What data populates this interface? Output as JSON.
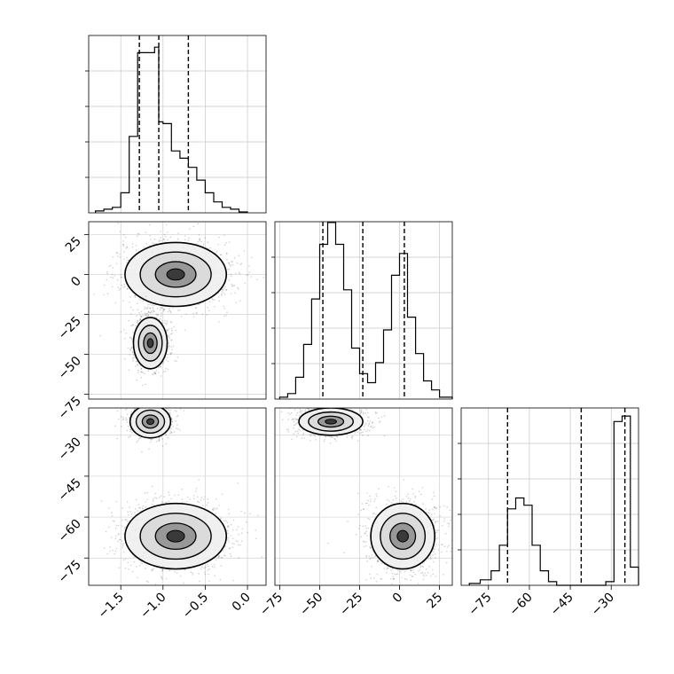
{
  "chart_data": {
    "type": "corner",
    "parameters": [
      {
        "id": "p1",
        "range": [
          -1.88,
          0.22
        ],
        "ticks": [
          {
            "v": -1.5,
            "label": "−1.5"
          },
          {
            "v": -1.0,
            "label": "−1.0"
          },
          {
            "v": -0.5,
            "label": "−0.5"
          },
          {
            "v": 0.0,
            "label": "0.0"
          }
        ]
      },
      {
        "id": "p2",
        "range": [
          -78,
          33
        ],
        "ticks": [
          {
            "v": -75,
            "label": "−75"
          },
          {
            "v": -50,
            "label": "−50"
          },
          {
            "v": -25,
            "label": "−25"
          },
          {
            "v": 0,
            "label": "0"
          },
          {
            "v": 25,
            "label": "25"
          }
        ]
      },
      {
        "id": "p3",
        "range": [
          -85,
          -20
        ],
        "ticks": [
          {
            "v": -75,
            "label": "−75"
          },
          {
            "v": -60,
            "label": "−60"
          },
          {
            "v": -45,
            "label": "−45"
          },
          {
            "v": -30,
            "label": "−30"
          }
        ]
      }
    ],
    "histograms": [
      {
        "param": "p1",
        "bins": [
          [
            -1.8,
            -1.7,
            0.01
          ],
          [
            -1.7,
            -1.6,
            0.02
          ],
          [
            -1.6,
            -1.5,
            0.03
          ],
          [
            -1.5,
            -1.4,
            0.11
          ],
          [
            -1.4,
            -1.3,
            0.42
          ],
          [
            -1.3,
            -1.2,
            0.88
          ],
          [
            -1.2,
            -1.1,
            0.88
          ],
          [
            -1.1,
            -1.05,
            0.91
          ],
          [
            -1.05,
            -1.0,
            0.5
          ],
          [
            -1.0,
            -0.9,
            0.49
          ],
          [
            -0.9,
            -0.8,
            0.34
          ],
          [
            -0.8,
            -0.7,
            0.3
          ],
          [
            -0.7,
            -0.6,
            0.25
          ],
          [
            -0.6,
            -0.5,
            0.18
          ],
          [
            -0.5,
            -0.4,
            0.11
          ],
          [
            -0.4,
            -0.3,
            0.06
          ],
          [
            -0.3,
            -0.2,
            0.03
          ],
          [
            -0.2,
            -0.1,
            0.02
          ],
          [
            -0.1,
            0.0,
            0.005
          ]
        ],
        "quantiles": [
          -1.28,
          -1.05,
          -0.7
        ]
      },
      {
        "param": "p2",
        "bins": [
          [
            -75,
            -70,
            0.01
          ],
          [
            -70,
            -65,
            0.03
          ],
          [
            -65,
            -60,
            0.12
          ],
          [
            -60,
            -55,
            0.3
          ],
          [
            -55,
            -50,
            0.55
          ],
          [
            -50,
            -45,
            0.85
          ],
          [
            -45,
            -40,
            0.97
          ],
          [
            -40,
            -35,
            0.85
          ],
          [
            -35,
            -30,
            0.6
          ],
          [
            -30,
            -25,
            0.28
          ],
          [
            -25,
            -20,
            0.14
          ],
          [
            -20,
            -15,
            0.09
          ],
          [
            -15,
            -10,
            0.2
          ],
          [
            -10,
            -5,
            0.38
          ],
          [
            -5,
            0,
            0.68
          ],
          [
            0,
            5,
            0.8
          ],
          [
            5,
            10,
            0.45
          ],
          [
            10,
            15,
            0.25
          ],
          [
            15,
            20,
            0.1
          ],
          [
            20,
            25,
            0.05
          ],
          [
            25,
            33,
            0.01
          ]
        ],
        "quantiles": [
          -48,
          -23,
          3
        ]
      },
      {
        "param": "p3",
        "bins": [
          [
            -82,
            -78,
            0.01
          ],
          [
            -78,
            -74,
            0.03
          ],
          [
            -74,
            -71,
            0.08
          ],
          [
            -71,
            -68,
            0.22
          ],
          [
            -68,
            -65,
            0.42
          ],
          [
            -65,
            -62,
            0.48
          ],
          [
            -62,
            -59,
            0.44
          ],
          [
            -59,
            -56,
            0.22
          ],
          [
            -56,
            -53,
            0.08
          ],
          [
            -53,
            -50,
            0.02
          ],
          [
            -50,
            -32,
            0.0
          ],
          [
            -32,
            -29,
            0.02
          ],
          [
            -29,
            -26,
            0.9
          ],
          [
            -26,
            -23,
            0.93
          ],
          [
            -23,
            -20,
            0.1
          ]
        ],
        "quantiles": [
          -68,
          -41,
          -25
        ]
      }
    ]
  }
}
